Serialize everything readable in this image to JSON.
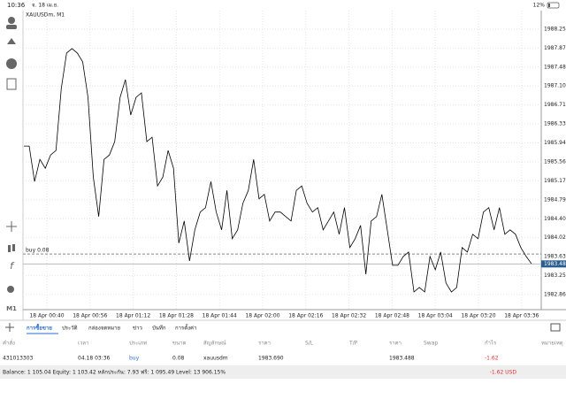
{
  "status_bar": {
    "time": "10:36",
    "date": "จ. 18 เม.ย.",
    "battery": "12%"
  },
  "chart": {
    "type": "line",
    "symbol": "XAUUSDm, M1",
    "timeframe": "M1",
    "ylim": [
      1982.56,
      1988.63
    ],
    "yticks": [
      1988.255,
      1987.87,
      {
        "value": 1987.485,
        "label": "1987.485"
      },
      {
        "value": 1987.1,
        "label": "1987.100"
      },
      1986.715,
      {
        "value": 1986.33,
        "label": "1986.330"
      },
      1985.945,
      {
        "value": 1985.56,
        "label": "1985.560"
      },
      1985.175,
      {
        "value": 1984.79,
        "label": "1984.790"
      },
      1984.405,
      {
        "value": 1984.02,
        "label": "1984.020"
      },
      1983.635,
      {
        "value": 1983.25,
        "label": "1983.250"
      },
      1982.865
    ],
    "categories": [
      "18 Apr 00:40",
      "18 Apr 00:56",
      "18 Apr 01:12",
      "18 Apr 01:28",
      "18 Apr 01:44",
      "18 Apr 02:00",
      "18 Apr 02:16",
      "18 Apr 02:32",
      "18 Apr 02:48",
      "18 Apr 03:04",
      "18 Apr 03:20",
      "18 Apr 03:36"
    ],
    "values": [
      1985.88,
      1985.88,
      1985.16,
      1985.61,
      1985.43,
      1985.7,
      1985.79,
      1987.05,
      1987.77,
      1987.86,
      1987.77,
      1987.59,
      1986.87,
      1985.25,
      1984.45,
      1985.61,
      1985.7,
      1985.97,
      1986.87,
      1987.23,
      1986.51,
      1986.87,
      1986.96,
      1985.97,
      1986.06,
      1985.07,
      1985.25,
      1985.79,
      1985.43,
      1983.91,
      1984.36,
      1983.55,
      1984.18,
      1984.54,
      1984.63,
      1985.16,
      1984.54,
      1984.18,
      1984.98,
      1984.0,
      1984.18,
      1984.72,
      1984.98,
      1985.61,
      1984.81,
      1984.9,
      1984.36,
      1984.54,
      1984.54,
      1984.45,
      1984.36,
      1984.98,
      1985.07,
      1984.72,
      1984.54,
      1984.63,
      1984.18,
      1984.36,
      1984.54,
      1984.09,
      1984.63,
      1983.82,
      1984.0,
      1984.27,
      1983.28,
      1984.36,
      1984.45,
      1984.9,
      1984.18,
      1983.46,
      1983.46,
      1983.64,
      1983.73,
      1982.92,
      1983.01,
      1982.92,
      1983.64,
      1983.37,
      1983.73,
      1983.1,
      1982.92,
      1983.01,
      1983.82,
      1983.73,
      1984.09,
      1984.0,
      1984.54,
      1984.63,
      1984.18,
      1984.63,
      1984.09,
      1984.18,
      1984.09,
      1983.82,
      1983.64,
      1983.49
    ],
    "color": "#000000",
    "grid": true,
    "order_line": {
      "label": "buy 0.08",
      "value": 1983.69
    },
    "current_price": {
      "value": 1983.488,
      "label": "1983.488"
    }
  },
  "tabs": [
    "การซื้อขาย",
    "ประวัติ",
    "กล่องจดหมาย",
    "ข่าว",
    "บันทึก",
    "การตั้งค่า"
  ],
  "table": {
    "header": [
      "คำสั่ง",
      "เวลา",
      "ประเภท",
      "ขนาด",
      "สัญลักษณ์",
      "ราคา",
      "S/L",
      "T/P",
      "ราคา",
      "Swap",
      "กำไร",
      "หมายเหตุ"
    ],
    "rows": [
      [
        "431013303",
        "04.18 03:36",
        "buy",
        "0.08",
        "xauusdm",
        "1983.690",
        "",
        "",
        "1983.488",
        "",
        "-1.62",
        ""
      ]
    ]
  },
  "footer": {
    "summary": "Balance: 1 105.04 Equity: 1 103.42 หลักประกัน: 7.93 ฟรี: 1 095.49 Level: 13 906.15%",
    "total": "-1.62  USD"
  }
}
